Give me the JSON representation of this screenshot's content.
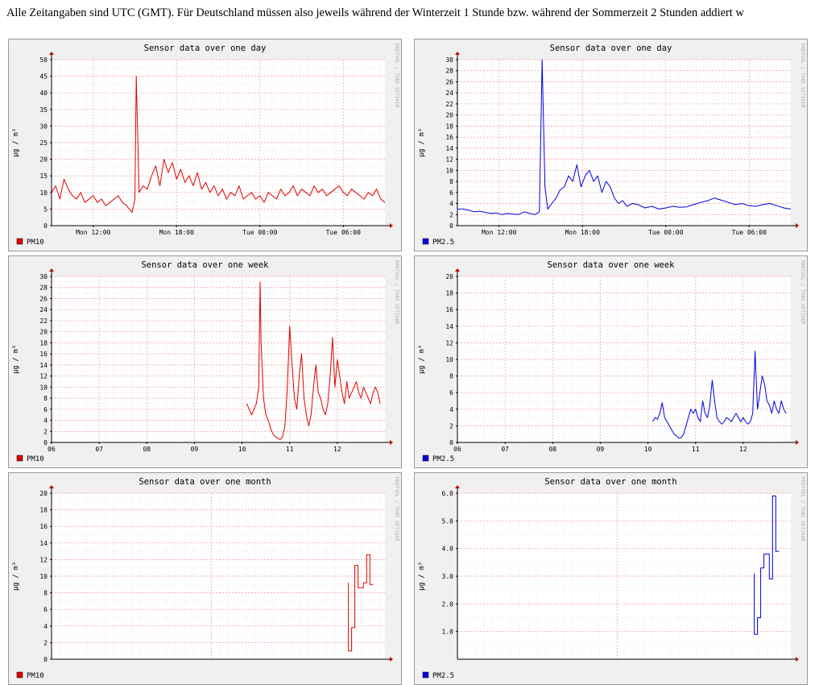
{
  "notice": "Alle Zeitangaben sind UTC (GMT). Für Deutschland müssen also jeweils während der Winterzeit 1 Stunde bzw. während der Sommerzeit 2 Stunden addiert w",
  "colors": {
    "pm10": "#e00000",
    "pm25": "#0000e0",
    "grid": "#f0a0a0",
    "panel_bg": "#f0f0f0",
    "plot_bg": "#ffffff"
  },
  "watermark": "RRDTOOL / TOBI OETIKER",
  "chart_data": [
    {
      "id": "day-pm10",
      "type": "line",
      "title": "Sensor data over one day",
      "ylabel": "µg / m³",
      "legend": "PM10",
      "color": "#e00000",
      "legend_placement": "bottom-left",
      "ylim": [
        0,
        50
      ],
      "yticks": [
        0,
        5,
        10,
        15,
        20,
        25,
        30,
        35,
        40,
        45,
        50
      ],
      "ytick_labels": [
        "0",
        "5",
        "10",
        "15",
        "20",
        "25",
        "30",
        "35",
        "40",
        "45",
        "50"
      ],
      "xlim": [
        0,
        24
      ],
      "xticks": [
        3,
        9,
        15,
        21
      ],
      "xtick_labels": [
        "Mon 12:00",
        "Mon 18:00",
        "Tue 00:00",
        "Tue 06:00"
      ],
      "x": [
        0,
        0.3,
        0.6,
        0.9,
        1.2,
        1.5,
        1.8,
        2.1,
        2.4,
        2.7,
        3.0,
        3.3,
        3.6,
        3.9,
        4.2,
        4.5,
        4.8,
        5.1,
        5.4,
        5.6,
        5.8,
        6.0,
        6.1,
        6.3,
        6.6,
        6.9,
        7.2,
        7.5,
        7.8,
        8.1,
        8.4,
        8.7,
        9.0,
        9.3,
        9.6,
        9.9,
        10.2,
        10.5,
        10.8,
        11.1,
        11.4,
        11.7,
        12.0,
        12.3,
        12.6,
        12.9,
        13.2,
        13.5,
        13.8,
        14.1,
        14.4,
        14.7,
        15.0,
        15.3,
        15.6,
        15.9,
        16.2,
        16.5,
        16.8,
        17.1,
        17.4,
        17.7,
        18.0,
        18.3,
        18.6,
        18.9,
        19.2,
        19.5,
        19.8,
        20.1,
        20.4,
        20.7,
        21.0,
        21.3,
        21.6,
        21.9,
        22.2,
        22.5,
        22.8,
        23.1,
        23.4,
        23.7,
        24.0
      ],
      "y": [
        10,
        12,
        8,
        14,
        11,
        9,
        8,
        10,
        7,
        8,
        9,
        7,
        8,
        6,
        7,
        8,
        9,
        7,
        6,
        5,
        4,
        8,
        45,
        10,
        12,
        11,
        15,
        18,
        12,
        20,
        16,
        19,
        14,
        17,
        13,
        15,
        12,
        16,
        11,
        13,
        10,
        12,
        9,
        11,
        8,
        10,
        9,
        12,
        8,
        9,
        10,
        8,
        9,
        7,
        10,
        9,
        8,
        11,
        9,
        10,
        12,
        9,
        11,
        10,
        9,
        12,
        10,
        11,
        9,
        10,
        11,
        12,
        10,
        9,
        11,
        10,
        9,
        8,
        10,
        9,
        11,
        8,
        7
      ],
      "smooth": false
    },
    {
      "id": "day-pm25",
      "type": "line",
      "title": "Sensor data over one day",
      "ylabel": "µg / m³",
      "legend": "PM2.5",
      "color": "#0000e0",
      "legend_placement": "bottom-left",
      "ylim": [
        0,
        30
      ],
      "yticks": [
        0,
        2,
        4,
        6,
        8,
        10,
        12,
        14,
        16,
        18,
        20,
        22,
        24,
        26,
        28,
        30
      ],
      "ytick_labels": [
        "0",
        "2",
        "4",
        "6",
        "8",
        "10",
        "12",
        "14",
        "16",
        "18",
        "20",
        "22",
        "24",
        "26",
        "28",
        "30"
      ],
      "xlim": [
        0,
        24
      ],
      "xticks": [
        3,
        9,
        15,
        21
      ],
      "xtick_labels": [
        "Mon 12:00",
        "Mon 18:00",
        "Tue 00:00",
        "Tue 06:00"
      ],
      "x": [
        0,
        0.4,
        0.8,
        1.2,
        1.6,
        2.0,
        2.4,
        2.8,
        3.2,
        3.6,
        4.0,
        4.4,
        4.8,
        5.2,
        5.6,
        5.9,
        6.1,
        6.3,
        6.5,
        6.8,
        7.1,
        7.4,
        7.7,
        8.0,
        8.3,
        8.6,
        8.9,
        9.2,
        9.5,
        9.8,
        10.1,
        10.4,
        10.7,
        11.0,
        11.3,
        11.6,
        11.9,
        12.2,
        12.6,
        13.0,
        13.5,
        14.0,
        14.5,
        15.0,
        15.5,
        16.0,
        16.5,
        17.0,
        17.5,
        18.0,
        18.5,
        19.0,
        19.5,
        20.0,
        20.5,
        21.0,
        21.5,
        22.0,
        22.5,
        23.0,
        23.5,
        24.0
      ],
      "y": [
        3,
        3,
        2.8,
        2.5,
        2.6,
        2.4,
        2.2,
        2.3,
        2,
        2.2,
        2.1,
        2,
        2.5,
        2.2,
        2,
        2.5,
        30,
        7,
        3,
        4,
        5,
        6.5,
        7,
        9,
        8,
        11,
        7,
        9,
        10,
        8,
        9,
        6,
        8,
        7,
        5,
        4,
        4.5,
        3.5,
        4,
        3.8,
        3.2,
        3.5,
        3,
        3.2,
        3.5,
        3.3,
        3.4,
        3.8,
        4.2,
        4.5,
        5,
        4.6,
        4.2,
        3.8,
        4,
        3.6,
        3.5,
        3.8,
        4,
        3.6,
        3.2,
        3
      ],
      "smooth": false
    },
    {
      "id": "week-pm10",
      "type": "line",
      "title": "Sensor data over one week",
      "ylabel": "µg / m³",
      "legend": "PM10",
      "color": "#e00000",
      "legend_placement": "bottom-left",
      "ylim": [
        0,
        30
      ],
      "yticks": [
        0,
        2,
        4,
        6,
        8,
        10,
        12,
        14,
        16,
        18,
        20,
        22,
        24,
        26,
        28,
        30
      ],
      "ytick_labels": [
        "0",
        "2",
        "4",
        "6",
        "8",
        "10",
        "12",
        "14",
        "16",
        "18",
        "20",
        "22",
        "24",
        "26",
        "28",
        "30"
      ],
      "xlim": [
        0,
        7
      ],
      "xticks": [
        0,
        1,
        2,
        3,
        4,
        5,
        6
      ],
      "xtick_labels": [
        "06",
        "07",
        "08",
        "09",
        "10",
        "11",
        "12"
      ],
      "x": [
        4.1,
        4.15,
        4.2,
        4.25,
        4.3,
        4.35,
        4.38,
        4.4,
        4.45,
        4.5,
        4.55,
        4.6,
        4.65,
        4.7,
        4.75,
        4.8,
        4.85,
        4.9,
        4.95,
        5.0,
        5.05,
        5.1,
        5.15,
        5.2,
        5.25,
        5.3,
        5.35,
        5.4,
        5.45,
        5.5,
        5.55,
        5.6,
        5.65,
        5.7,
        5.75,
        5.8,
        5.85,
        5.9,
        5.95,
        6.0,
        6.05,
        6.1,
        6.15,
        6.2,
        6.25,
        6.3,
        6.35,
        6.4,
        6.45,
        6.5,
        6.55,
        6.6,
        6.65,
        6.7,
        6.75,
        6.8,
        6.85,
        6.9
      ],
      "y": [
        7,
        6,
        5,
        6,
        7,
        10,
        29,
        18,
        8,
        5,
        4,
        2.5,
        1.5,
        1,
        0.8,
        0.5,
        1,
        3,
        10,
        21,
        14,
        8,
        6,
        12,
        16,
        8,
        5,
        3,
        5,
        10,
        14,
        9,
        8,
        6,
        5,
        7,
        12,
        19,
        10,
        15,
        12,
        9,
        7,
        11,
        8,
        9,
        10,
        11,
        9,
        8,
        10,
        9,
        8,
        7,
        9,
        10,
        9,
        7
      ],
      "smooth": false
    },
    {
      "id": "week-pm25",
      "type": "line",
      "title": "Sensor data over one week",
      "ylabel": "µg / m³",
      "legend": "PM2.5",
      "color": "#0000e0",
      "legend_placement": "bottom-left",
      "ylim": [
        0,
        20
      ],
      "yticks": [
        0,
        2,
        4,
        6,
        8,
        10,
        12,
        14,
        16,
        18,
        20
      ],
      "ytick_labels": [
        "0",
        "2",
        "4",
        "6",
        "8",
        "10",
        "12",
        "14",
        "16",
        "18",
        "20"
      ],
      "xlim": [
        0,
        7
      ],
      "xticks": [
        0,
        1,
        2,
        3,
        4,
        5,
        6
      ],
      "xtick_labels": [
        "06",
        "07",
        "08",
        "09",
        "10",
        "11",
        "12"
      ],
      "x": [
        4.1,
        4.15,
        4.2,
        4.25,
        4.3,
        4.35,
        4.4,
        4.45,
        4.5,
        4.55,
        4.6,
        4.65,
        4.7,
        4.75,
        4.8,
        4.85,
        4.9,
        4.95,
        5.0,
        5.05,
        5.1,
        5.15,
        5.2,
        5.25,
        5.3,
        5.35,
        5.4,
        5.45,
        5.5,
        5.55,
        5.6,
        5.65,
        5.7,
        5.75,
        5.8,
        5.85,
        5.9,
        5.95,
        6.0,
        6.05,
        6.1,
        6.15,
        6.2,
        6.25,
        6.3,
        6.35,
        6.4,
        6.45,
        6.5,
        6.55,
        6.6,
        6.65,
        6.7,
        6.75,
        6.8,
        6.85,
        6.9
      ],
      "y": [
        2.5,
        3,
        2.8,
        3.5,
        4.8,
        3,
        2.5,
        2,
        1.5,
        1,
        0.8,
        0.5,
        0.6,
        1,
        2,
        3,
        4,
        3.5,
        4,
        3,
        2.5,
        5,
        3.5,
        3,
        4.5,
        7.5,
        5,
        3,
        2.5,
        2.2,
        2.5,
        3,
        2.8,
        2.5,
        3,
        3.5,
        3,
        2.5,
        3,
        2.5,
        2.2,
        2.5,
        3.5,
        11,
        4,
        6,
        8,
        7,
        5,
        4.5,
        3.5,
        5,
        4,
        3.5,
        5,
        4,
        3.5
      ],
      "smooth": false
    },
    {
      "id": "month-pm10",
      "type": "line",
      "title": "Sensor data over one month",
      "ylabel": "µg / m³",
      "legend": "PM10",
      "color": "#e00000",
      "legend_placement": "bottom-left",
      "ylim": [
        0,
        20
      ],
      "yticks": [
        0,
        2,
        4,
        6,
        8,
        10,
        12,
        14,
        16,
        18,
        20
      ],
      "ytick_labels": [
        "0",
        "2",
        "4",
        "6",
        "8",
        "10",
        "12",
        "14",
        "16",
        "18",
        "20"
      ],
      "xlim": [
        0,
        31
      ],
      "xticks": [],
      "xtick_labels": [],
      "x": [
        27.6,
        27.6,
        27.9,
        27.9,
        28.2,
        28.2,
        28.5,
        28.5,
        29.0,
        29.0,
        29.3,
        29.3,
        29.6,
        29.6,
        29.9
      ],
      "y": [
        9.2,
        1,
        1,
        3.8,
        3.8,
        11.3,
        11.3,
        8.6,
        8.6,
        9.2,
        9.2,
        12.6,
        12.6,
        9,
        9
      ],
      "smooth": false
    },
    {
      "id": "month-pm25",
      "type": "line",
      "title": "Sensor data over one month",
      "ylabel": "µg / m³",
      "legend": "PM2.5",
      "color": "#0000e0",
      "legend_placement": "bottom-left",
      "ylim": [
        0,
        6.0
      ],
      "yticks": [
        1.0,
        2.0,
        3.0,
        4.0,
        5.0,
        6.0
      ],
      "ytick_labels": [
        "1.0",
        "2.0",
        "3.0",
        "4.0",
        "5.0",
        "6.0"
      ],
      "xlim": [
        0,
        31
      ],
      "xticks": [],
      "xtick_labels": [],
      "x": [
        27.6,
        27.6,
        27.9,
        27.9,
        28.2,
        28.2,
        28.5,
        28.5,
        29.0,
        29.0,
        29.3,
        29.3,
        29.6,
        29.6,
        29.9
      ],
      "y": [
        3.1,
        0.9,
        0.9,
        1.5,
        1.5,
        3.3,
        3.3,
        3.8,
        3.8,
        2.9,
        2.9,
        5.9,
        5.9,
        3.9,
        3.9
      ],
      "smooth": false
    }
  ]
}
